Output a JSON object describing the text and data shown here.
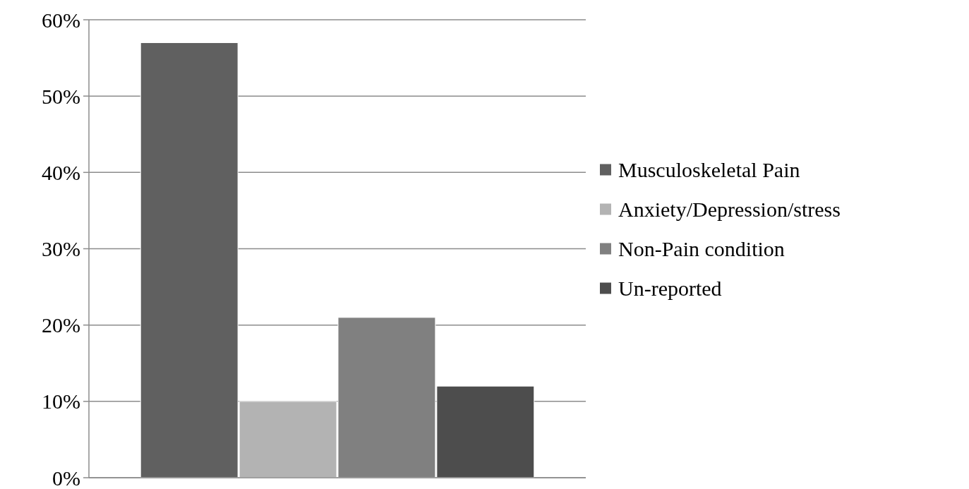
{
  "chart_data": {
    "type": "bar",
    "categories": [
      null
    ],
    "series": [
      {
        "name": "Musculoskeletal Pain",
        "color": "#606060",
        "values": [
          57
        ]
      },
      {
        "name": "Anxiety/Depression/stress",
        "color": "#b3b3b3",
        "values": [
          10
        ]
      },
      {
        "name": "Non-Pain condition",
        "color": "#808080",
        "values": [
          21
        ]
      },
      {
        "name": "Un-reported",
        "color": "#4d4d4d",
        "values": [
          12
        ]
      }
    ],
    "ylim": [
      0,
      60
    ],
    "yticks": [
      {
        "value": 0,
        "label": "0%"
      },
      {
        "value": 10,
        "label": "10%"
      },
      {
        "value": 20,
        "label": "20%"
      },
      {
        "value": 30,
        "label": "30%"
      },
      {
        "value": 40,
        "label": "40%"
      },
      {
        "value": 50,
        "label": "50%"
      },
      {
        "value": 60,
        "label": "60%"
      }
    ],
    "grid": "y",
    "legend": "right"
  }
}
